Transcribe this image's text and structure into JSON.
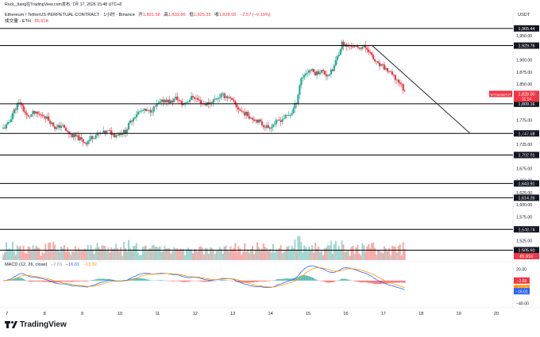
{
  "header": {
    "author_line": "Rock_Jiang在TradingView.com发布, 7月 17, 2026 15:48 UTC+8",
    "symbol_line": "Ethereum / TetherUS PERPETUAL CONTRACT · 1小时 · Binance",
    "ohlc": [
      {
        "label": "开",
        "value": "1,831.58"
      },
      {
        "label": "高",
        "value": "1,832.86"
      },
      {
        "label": "低",
        "value": "1,825.35"
      },
      {
        "label": "收",
        "value": "1,828.00"
      }
    ],
    "change": "−2.57 (−0.19%)",
    "volume_label": "成交量 · ETH",
    "volume_value": "85.91K",
    "macd_label": "MACD (12, 26, close)",
    "macd_values": [
      "−2.69",
      "−16.01",
      "−13.32"
    ]
  },
  "currency": "USDT",
  "brand": "TradingView",
  "colors": {
    "up": "#22ab94",
    "down": "#f23645",
    "vol_up": "#9ed6cf",
    "vol_down": "#f7a9a7",
    "macd_line": "#2962ff",
    "signal_line": "#ff9800",
    "level": "#000000"
  },
  "chart_data": {
    "type": "candlestick",
    "price_axis": {
      "ylim": [
        1485,
        1975
      ],
      "ticks": [
        1950,
        1900,
        1875,
        1850,
        1775,
        1750,
        1725,
        1700,
        1675,
        1650,
        1625,
        1600,
        1575,
        1550,
        1525,
        1500
      ],
      "tick_labels": [
        "1,950.00",
        "1,900.00",
        "1,875.00",
        "1,850.00",
        "1,775.00",
        "1,750.00",
        "1,725.00",
        "1,700.00",
        "1,675.00",
        "1,650.00",
        "1,625.00",
        "1,600.00",
        "1,575.00",
        "1,550.00",
        "1,525.00",
        "1,500.00"
      ]
    },
    "x_axis": {
      "labels": [
        "7",
        "8",
        "9",
        "10",
        "11",
        "12",
        "13",
        "14",
        "15",
        "16",
        "17",
        "18",
        "19",
        "20"
      ]
    },
    "horizontal_levels": [
      1965.44,
      1929.76,
      1809.16,
      1747.68,
      1702.91,
      1643.91,
      1614.26,
      1548.74,
      1505.6
    ],
    "horizontal_level_labels": [
      "1,965.44",
      "1,929.76",
      "1,809.16",
      "1,747.68",
      "1,702.91",
      "1,643.91",
      "1,614.26",
      "1,548.74",
      "1,505.60"
    ],
    "trendline": {
      "from": {
        "day": 16.7,
        "price": 1930
      },
      "to": {
        "day": 19.3,
        "price": 1748
      }
    },
    "last_price": {
      "label": "ETHUSDT.P",
      "value": "1,828.00",
      "countdown": "11:14"
    },
    "volume_last": "85.91K",
    "price_path": [
      {
        "day": 6.9,
        "price": 1758
      },
      {
        "day": 7.05,
        "price": 1768
      },
      {
        "day": 7.15,
        "price": 1790
      },
      {
        "day": 7.25,
        "price": 1803
      },
      {
        "day": 7.35,
        "price": 1812
      },
      {
        "day": 7.45,
        "price": 1795
      },
      {
        "day": 7.55,
        "price": 1780
      },
      {
        "day": 7.7,
        "price": 1790
      },
      {
        "day": 7.85,
        "price": 1786
      },
      {
        "day": 8.0,
        "price": 1785
      },
      {
        "day": 8.15,
        "price": 1772
      },
      {
        "day": 8.3,
        "price": 1758
      },
      {
        "day": 8.45,
        "price": 1765
      },
      {
        "day": 8.6,
        "price": 1750
      },
      {
        "day": 8.75,
        "price": 1742
      },
      {
        "day": 8.9,
        "price": 1738
      },
      {
        "day": 9.0,
        "price": 1732
      },
      {
        "day": 9.1,
        "price": 1728
      },
      {
        "day": 9.25,
        "price": 1740
      },
      {
        "day": 9.4,
        "price": 1745
      },
      {
        "day": 9.55,
        "price": 1748
      },
      {
        "day": 9.7,
        "price": 1752
      },
      {
        "day": 9.85,
        "price": 1744
      },
      {
        "day": 10.0,
        "price": 1748
      },
      {
        "day": 10.15,
        "price": 1752
      },
      {
        "day": 10.3,
        "price": 1775
      },
      {
        "day": 10.45,
        "price": 1790
      },
      {
        "day": 10.6,
        "price": 1795
      },
      {
        "day": 10.75,
        "price": 1792
      },
      {
        "day": 10.9,
        "price": 1800
      },
      {
        "day": 11.05,
        "price": 1810
      },
      {
        "day": 11.2,
        "price": 1818
      },
      {
        "day": 11.35,
        "price": 1812
      },
      {
        "day": 11.5,
        "price": 1822
      },
      {
        "day": 11.65,
        "price": 1808
      },
      {
        "day": 11.8,
        "price": 1815
      },
      {
        "day": 11.95,
        "price": 1825
      },
      {
        "day": 12.1,
        "price": 1815
      },
      {
        "day": 12.25,
        "price": 1808
      },
      {
        "day": 12.4,
        "price": 1812
      },
      {
        "day": 12.55,
        "price": 1820
      },
      {
        "day": 12.7,
        "price": 1827
      },
      {
        "day": 12.85,
        "price": 1824
      },
      {
        "day": 12.95,
        "price": 1817
      },
      {
        "day": 13.05,
        "price": 1808
      },
      {
        "day": 13.2,
        "price": 1795
      },
      {
        "day": 13.35,
        "price": 1788
      },
      {
        "day": 13.5,
        "price": 1780
      },
      {
        "day": 13.65,
        "price": 1775
      },
      {
        "day": 13.8,
        "price": 1765
      },
      {
        "day": 13.95,
        "price": 1760
      },
      {
        "day": 14.1,
        "price": 1768
      },
      {
        "day": 14.25,
        "price": 1775
      },
      {
        "day": 14.4,
        "price": 1782
      },
      {
        "day": 14.55,
        "price": 1788
      },
      {
        "day": 14.7,
        "price": 1815
      },
      {
        "day": 14.8,
        "price": 1860
      },
      {
        "day": 14.9,
        "price": 1870
      },
      {
        "day": 15.05,
        "price": 1880
      },
      {
        "day": 15.2,
        "price": 1872
      },
      {
        "day": 15.35,
        "price": 1878
      },
      {
        "day": 15.5,
        "price": 1868
      },
      {
        "day": 15.65,
        "price": 1878
      },
      {
        "day": 15.8,
        "price": 1912
      },
      {
        "day": 15.9,
        "price": 1935
      },
      {
        "day": 16.0,
        "price": 1928
      },
      {
        "day": 16.15,
        "price": 1930
      },
      {
        "day": 16.3,
        "price": 1924
      },
      {
        "day": 16.45,
        "price": 1928
      },
      {
        "day": 16.6,
        "price": 1922
      },
      {
        "day": 16.7,
        "price": 1905
      },
      {
        "day": 16.85,
        "price": 1890
      },
      {
        "day": 17.0,
        "price": 1885
      },
      {
        "day": 17.15,
        "price": 1875
      },
      {
        "day": 17.3,
        "price": 1862
      },
      {
        "day": 17.45,
        "price": 1852
      },
      {
        "day": 17.6,
        "price": 1828
      }
    ],
    "macd_axis": {
      "ylim": [
        -45,
        25
      ],
      "ticks": [
        20,
        0,
        -20,
        -40
      ],
      "tick_labels": [
        "20.00",
        "0.00",
        "−20.00",
        "−40.00"
      ]
    },
    "macd_last": {
      "histogram": -2.69,
      "macd": -16.01,
      "signal": -13.32
    }
  }
}
